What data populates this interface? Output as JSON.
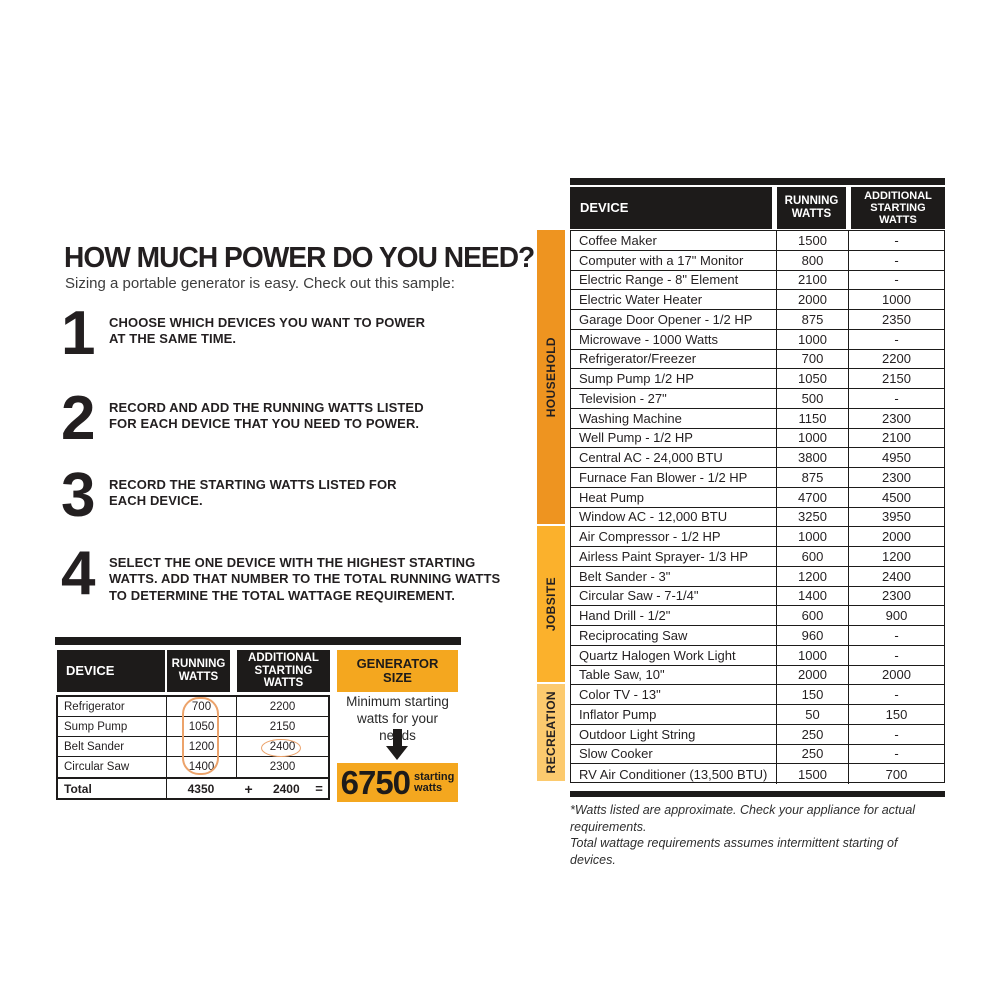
{
  "page": {
    "title": "HOW MUCH POWER DO YOU NEED?",
    "subtitle": "Sizing a portable generator is easy. Check out this sample:"
  },
  "steps": [
    {
      "number": "1",
      "text": "CHOOSE WHICH DEVICES YOU WANT TO POWER\nAT THE SAME TIME."
    },
    {
      "number": "2",
      "text": "RECORD AND ADD THE RUNNING WATTS LISTED\nFOR EACH DEVICE THAT YOU NEED TO POWER."
    },
    {
      "number": "3",
      "text": "RECORD THE STARTING WATTS LISTED FOR\nEACH DEVICE."
    },
    {
      "number": "4",
      "text": "SELECT THE ONE DEVICE WITH THE HIGHEST STARTING\nWATTS. ADD THAT NUMBER TO THE TOTAL RUNNING WATTS\nTO DETERMINE THE TOTAL WATTAGE REQUIREMENT."
    }
  ],
  "sample_table": {
    "headers": {
      "device": "DEVICE",
      "running": "RUNNING\nWATTS",
      "additional": "ADDITIONAL\nSTARTING\nWATTS",
      "generator": "GENERATOR\nSIZE"
    },
    "rows": [
      {
        "device": "Refrigerator",
        "running": "700",
        "additional": "2200"
      },
      {
        "device": "Sump Pump",
        "running": "1050",
        "additional": "2150"
      },
      {
        "device": "Belt Sander",
        "running": "1200",
        "additional": "2400",
        "additional_circled": true
      },
      {
        "device": "Circular Saw",
        "running": "1400",
        "additional": "2300"
      }
    ],
    "running_column_circled": true,
    "total": {
      "label": "Total",
      "running": "4350",
      "plus": "+",
      "additional": "2400",
      "equals": "="
    },
    "generator": {
      "note": "Minimum starting\nwatts for your needs",
      "result_value": "6750",
      "result_unit": "starting\nwatts"
    }
  },
  "wattage_table": {
    "headers": {
      "device": "DEVICE",
      "running": "RUNNING\nWATTS",
      "additional": "ADDITIONAL\nSTARTING\nWATTS"
    },
    "sections": [
      {
        "label": "HOUSEHOLD",
        "color": "#EE9420",
        "rows": [
          {
            "device": "Coffee Maker",
            "running": "1500",
            "additional": "-"
          },
          {
            "device": "Computer with a 17\" Monitor",
            "running": "800",
            "additional": "-"
          },
          {
            "device": "Electric Range - 8\" Element",
            "running": "2100",
            "additional": "-"
          },
          {
            "device": "Electric Water Heater",
            "running": "2000",
            "additional": "1000"
          },
          {
            "device": "Garage Door Opener - 1/2 HP",
            "running": "875",
            "additional": "2350"
          },
          {
            "device": "Microwave - 1000 Watts",
            "running": "1000",
            "additional": "-"
          },
          {
            "device": "Refrigerator/Freezer",
            "running": "700",
            "additional": "2200"
          },
          {
            "device": "Sump Pump 1/2 HP",
            "running": "1050",
            "additional": "2150"
          },
          {
            "device": "Television - 27\"",
            "running": "500",
            "additional": "-"
          },
          {
            "device": "Washing Machine",
            "running": "1150",
            "additional": "2300"
          },
          {
            "device": "Well Pump - 1/2 HP",
            "running": "1000",
            "additional": "2100"
          },
          {
            "device": "Central AC - 24,000 BTU",
            "running": "3800",
            "additional": "4950"
          },
          {
            "device": "Furnace Fan Blower - 1/2 HP",
            "running": "875",
            "additional": "2300"
          },
          {
            "device": "Heat Pump",
            "running": "4700",
            "additional": "4500"
          },
          {
            "device": "Window AC - 12,000 BTU",
            "running": "3250",
            "additional": "3950"
          }
        ]
      },
      {
        "label": "JOBSITE",
        "color": "#FBB12C",
        "rows": [
          {
            "device": "Air Compressor - 1/2 HP",
            "running": "1000",
            "additional": "2000"
          },
          {
            "device": "Airless Paint Sprayer- 1/3 HP",
            "running": "600",
            "additional": "1200"
          },
          {
            "device": "Belt Sander - 3\"",
            "running": "1200",
            "additional": "2400"
          },
          {
            "device": "Circular Saw - 7-1/4\"",
            "running": "1400",
            "additional": "2300"
          },
          {
            "device": "Hand Drill - 1/2\"",
            "running": "600",
            "additional": "900"
          },
          {
            "device": "Reciprocating Saw",
            "running": "960",
            "additional": "-"
          },
          {
            "device": "Quartz Halogen Work Light",
            "running": "1000",
            "additional": "-"
          },
          {
            "device": "Table Saw, 10\"",
            "running": "2000",
            "additional": "2000"
          }
        ]
      },
      {
        "label": "RECREATION",
        "color": "#FCCA6E",
        "rows": [
          {
            "device": "Color TV - 13\"",
            "running": "150",
            "additional": "-"
          },
          {
            "device": "Inflator Pump",
            "running": "50",
            "additional": "150"
          },
          {
            "device": "Outdoor Light String",
            "running": "250",
            "additional": "-"
          },
          {
            "device": "Slow Cooker",
            "running": "250",
            "additional": "-"
          },
          {
            "device": "RV Air Conditioner (13,500 BTU)",
            "running": "1500",
            "additional": "700"
          }
        ]
      }
    ]
  },
  "footnote": {
    "text": "*Watts listed are approximate. Check your appliance for actual requirements.\nTotal wattage requirements assumes intermittent starting of devices."
  },
  "colors": {
    "accent_yellow": "#F4A71F",
    "bar_black": "#1D1B1A",
    "annotation_orange": "#ECA36B"
  }
}
